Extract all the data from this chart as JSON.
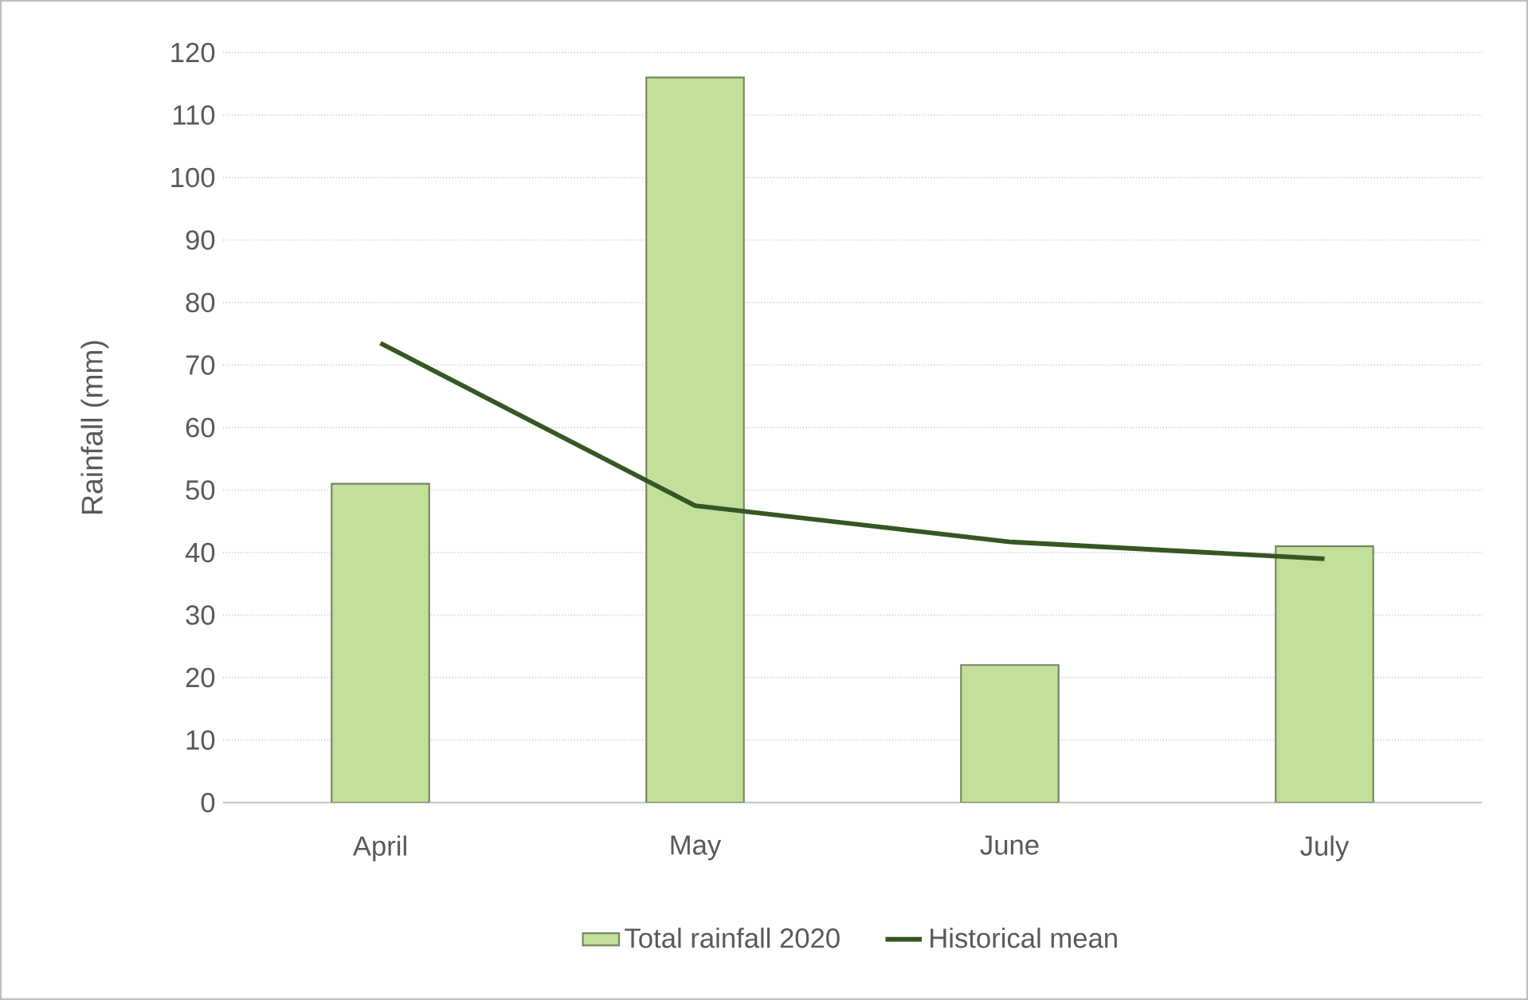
{
  "chart_data": {
    "type": "bar",
    "ylabel": "Rainfall (mm)",
    "categories": [
      "April",
      "May",
      "June",
      "July"
    ],
    "series": [
      {
        "name": "Total rainfall 2020",
        "color": "#c3df9c",
        "values": [
          51,
          116,
          22,
          41
        ]
      },
      {
        "name": "Historical mean",
        "type": "line",
        "color": "#375623",
        "values": [
          73.5,
          47.5,
          41.7,
          39
        ],
        "marker": "none",
        "line_style": "solid"
      }
    ],
    "ylim": [
      0,
      120
    ],
    "yticks": [
      0,
      10,
      20,
      30,
      40,
      50,
      60,
      70,
      80,
      90,
      100,
      110,
      120
    ],
    "grid": "y",
    "legend": "bottom"
  }
}
